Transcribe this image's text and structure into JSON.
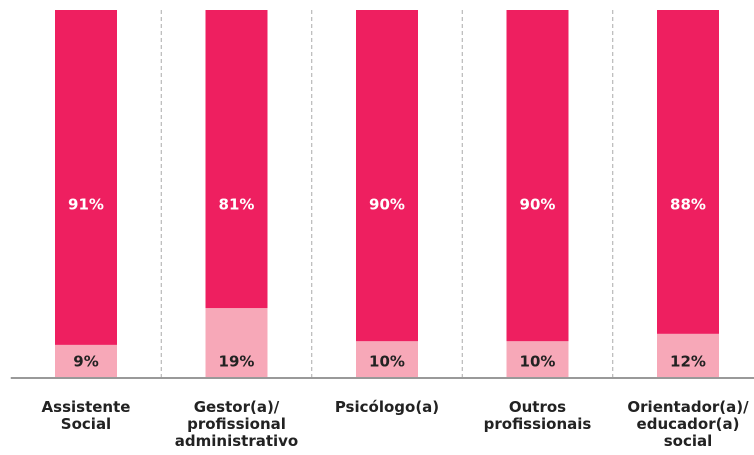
{
  "chart_data": {
    "type": "stacked_bar",
    "categories": [
      "Assistente\nSocial",
      "Gestor(a)/\nprofissional\nadministrativo",
      "Psicólogo(a)",
      "Outros\nprofissionais",
      "Orientador(a)/\neducador(a)\nsocial"
    ],
    "series": [
      {
        "color": "#f7a8b8",
        "values": [
          9,
          19,
          10,
          10,
          12
        ],
        "value_labels": [
          "9%",
          "19%",
          "10%",
          "10%",
          "12%"
        ]
      },
      {
        "color": "#ee1f60",
        "values": [
          91,
          81,
          90,
          90,
          88
        ],
        "value_labels": [
          "91%",
          "81%",
          "90%",
          "90%",
          "88%"
        ]
      }
    ],
    "ylim": [
      0,
      100
    ]
  }
}
